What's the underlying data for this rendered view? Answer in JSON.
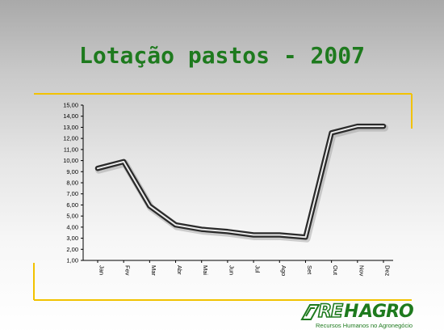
{
  "slide": {
    "title": "Lotação pastos - 2007"
  },
  "colors": {
    "title": "#1e7a1e",
    "frame_accent": "#f2c200",
    "series_line": "#2a2a2a",
    "series_highlight": "#ececec"
  },
  "chart_data": {
    "type": "line",
    "categories": [
      "Jan",
      "Fev",
      "Mar",
      "Abr",
      "Mai",
      "Jun",
      "Jul",
      "Ago",
      "Set",
      "Out",
      "Nov",
      "Dez"
    ],
    "series": [
      {
        "values": [
          9.3,
          9.9,
          5.9,
          4.2,
          3.8,
          3.6,
          3.3,
          3.3,
          3.1,
          12.5,
          13.1,
          13.1
        ]
      }
    ],
    "y_ticks": [
      "1,00",
      "2,00",
      "3,00",
      "4,00",
      "5,00",
      "6,00",
      "7,00",
      "8,00",
      "9,00",
      "10,00",
      "11,00",
      "12,00",
      "13,00",
      "14,00",
      "15,00"
    ],
    "ylim": [
      1,
      15
    ],
    "grid": false,
    "legend": "none"
  },
  "logo": {
    "part_re": "RE",
    "part_h": "H",
    "part_agro": "AGRO",
    "tagline": "Recursos Humanos no Agronegócio"
  }
}
